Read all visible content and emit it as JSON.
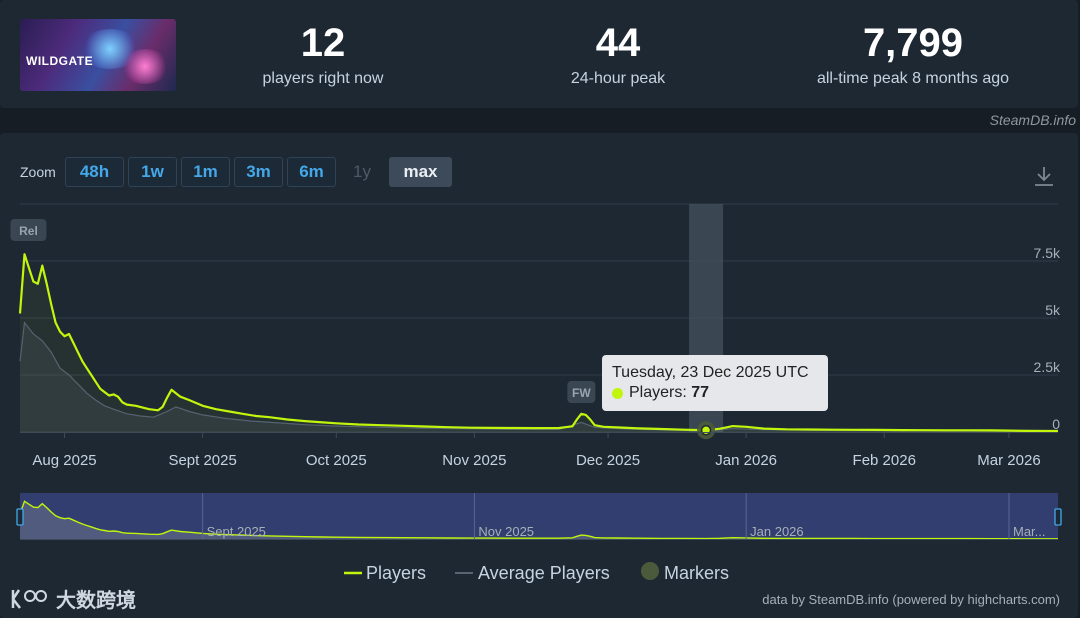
{
  "game": {
    "logo_text": "WILDGATE"
  },
  "stats": [
    {
      "value": "12",
      "label": "players right now"
    },
    {
      "value": "44",
      "label": "24-hour peak"
    },
    {
      "value": "7,799",
      "label": "all-time peak 8 months ago"
    }
  ],
  "watermark": "SteamDB.info",
  "zoom": {
    "label": "Zoom",
    "buttons": [
      {
        "label": "48h",
        "state": "enabled"
      },
      {
        "label": "1w",
        "state": "enabled"
      },
      {
        "label": "1m",
        "state": "enabled"
      },
      {
        "label": "3m",
        "state": "enabled"
      },
      {
        "label": "6m",
        "state": "enabled"
      },
      {
        "label": "1y",
        "state": "disabled"
      },
      {
        "label": "max",
        "state": "active"
      }
    ]
  },
  "chart_data": {
    "type": "line",
    "x_range": [
      "2025-07-22",
      "2026-03-12"
    ],
    "ylim": [
      0,
      10000
    ],
    "y_ticks": [
      {
        "value": 0,
        "label": "0"
      },
      {
        "value": 2500,
        "label": "2.5k"
      },
      {
        "value": 5000,
        "label": "5k"
      },
      {
        "value": 7500,
        "label": "7.5k"
      }
    ],
    "x_ticks": [
      {
        "date": "2025-08-01",
        "label": "Aug 2025"
      },
      {
        "date": "2025-09-01",
        "label": "Sept 2025"
      },
      {
        "date": "2025-10-01",
        "label": "Oct 2025"
      },
      {
        "date": "2025-11-01",
        "label": "Nov 2025"
      },
      {
        "date": "2025-12-01",
        "label": "Dec 2025"
      },
      {
        "date": "2026-01-01",
        "label": "Jan 2026"
      },
      {
        "date": "2026-02-01",
        "label": "Feb 2026"
      },
      {
        "date": "2026-03-01",
        "label": "Mar 2026"
      }
    ],
    "navigator_ticks": [
      {
        "date": "2025-09-01",
        "label": "Sept 2025"
      },
      {
        "date": "2025-11-01",
        "label": "Nov 2025"
      },
      {
        "date": "2026-01-01",
        "label": "Jan 2026"
      },
      {
        "date": "2026-03-01",
        "label": "Mar..."
      }
    ],
    "series": [
      {
        "name": "Players",
        "color": "#c1f60c",
        "points": [
          [
            "2025-07-22",
            5200
          ],
          [
            "2025-07-23",
            7800
          ],
          [
            "2025-07-24",
            7200
          ],
          [
            "2025-07-25",
            6600
          ],
          [
            "2025-07-26",
            6500
          ],
          [
            "2025-07-27",
            7300
          ],
          [
            "2025-07-28",
            6500
          ],
          [
            "2025-07-29",
            5600
          ],
          [
            "2025-07-30",
            4800
          ],
          [
            "2025-07-31",
            4400
          ],
          [
            "2025-08-01",
            4200
          ],
          [
            "2025-08-02",
            4300
          ],
          [
            "2025-08-03",
            3900
          ],
          [
            "2025-08-04",
            3500
          ],
          [
            "2025-08-05",
            3100
          ],
          [
            "2025-08-06",
            2800
          ],
          [
            "2025-08-07",
            2500
          ],
          [
            "2025-08-08",
            2200
          ],
          [
            "2025-08-09",
            1900
          ],
          [
            "2025-08-10",
            1750
          ],
          [
            "2025-08-11",
            1600
          ],
          [
            "2025-08-12",
            1650
          ],
          [
            "2025-08-13",
            1550
          ],
          [
            "2025-08-14",
            1300
          ],
          [
            "2025-08-15",
            1200
          ],
          [
            "2025-08-17",
            1150
          ],
          [
            "2025-08-19",
            1050
          ],
          [
            "2025-08-20",
            1000
          ],
          [
            "2025-08-22",
            950
          ],
          [
            "2025-08-23",
            1100
          ],
          [
            "2025-08-24",
            1500
          ],
          [
            "2025-08-25",
            1850
          ],
          [
            "2025-08-26",
            1700
          ],
          [
            "2025-08-27",
            1550
          ],
          [
            "2025-08-29",
            1400
          ],
          [
            "2025-09-01",
            1150
          ],
          [
            "2025-09-04",
            1000
          ],
          [
            "2025-09-07",
            900
          ],
          [
            "2025-09-10",
            800
          ],
          [
            "2025-09-13",
            700
          ],
          [
            "2025-09-16",
            650
          ],
          [
            "2025-09-20",
            550
          ],
          [
            "2025-09-24",
            480
          ],
          [
            "2025-09-28",
            420
          ],
          [
            "2025-10-01",
            380
          ],
          [
            "2025-10-06",
            330
          ],
          [
            "2025-10-11",
            300
          ],
          [
            "2025-10-16",
            270
          ],
          [
            "2025-10-21",
            240
          ],
          [
            "2025-10-26",
            210
          ],
          [
            "2025-10-31",
            190
          ],
          [
            "2025-11-05",
            180
          ],
          [
            "2025-11-10",
            175
          ],
          [
            "2025-11-15",
            170
          ],
          [
            "2025-11-20",
            175
          ],
          [
            "2025-11-23",
            250
          ],
          [
            "2025-11-24",
            550
          ],
          [
            "2025-11-25",
            800
          ],
          [
            "2025-11-26",
            750
          ],
          [
            "2025-11-27",
            550
          ],
          [
            "2025-11-28",
            300
          ],
          [
            "2025-11-30",
            230
          ],
          [
            "2025-12-03",
            200
          ],
          [
            "2025-12-08",
            160
          ],
          [
            "2025-12-13",
            130
          ],
          [
            "2025-12-18",
            100
          ],
          [
            "2025-12-23",
            77
          ],
          [
            "2025-12-26",
            140
          ],
          [
            "2025-12-29",
            260
          ],
          [
            "2026-01-01",
            230
          ],
          [
            "2026-01-05",
            150
          ],
          [
            "2026-01-10",
            120
          ],
          [
            "2026-01-15",
            110
          ],
          [
            "2026-01-20",
            100
          ],
          [
            "2026-01-25",
            95
          ],
          [
            "2026-01-30",
            90
          ],
          [
            "2026-02-05",
            85
          ],
          [
            "2026-02-10",
            80
          ],
          [
            "2026-02-15",
            75
          ],
          [
            "2026-02-20",
            75
          ],
          [
            "2026-02-25",
            70
          ],
          [
            "2026-03-01",
            60
          ],
          [
            "2026-03-05",
            50
          ],
          [
            "2026-03-10",
            45
          ],
          [
            "2026-03-12",
            44
          ]
        ]
      },
      {
        "name": "Average Players",
        "color": "#566270",
        "points": [
          [
            "2025-07-22",
            3100
          ],
          [
            "2025-07-23",
            4800
          ],
          [
            "2025-07-25",
            4300
          ],
          [
            "2025-07-27",
            4000
          ],
          [
            "2025-07-29",
            3500
          ],
          [
            "2025-07-31",
            2800
          ],
          [
            "2025-08-02",
            2500
          ],
          [
            "2025-08-04",
            2100
          ],
          [
            "2025-08-06",
            1700
          ],
          [
            "2025-08-08",
            1400
          ],
          [
            "2025-08-10",
            1150
          ],
          [
            "2025-08-12",
            1000
          ],
          [
            "2025-08-15",
            800
          ],
          [
            "2025-08-18",
            700
          ],
          [
            "2025-08-21",
            650
          ],
          [
            "2025-08-24",
            900
          ],
          [
            "2025-08-26",
            1100
          ],
          [
            "2025-08-29",
            900
          ],
          [
            "2025-09-01",
            750
          ],
          [
            "2025-09-06",
            600
          ],
          [
            "2025-09-12",
            480
          ],
          [
            "2025-09-18",
            400
          ],
          [
            "2025-09-24",
            320
          ],
          [
            "2025-10-01",
            260
          ],
          [
            "2025-10-10",
            210
          ],
          [
            "2025-10-20",
            170
          ],
          [
            "2025-10-31",
            140
          ],
          [
            "2025-11-10",
            120
          ],
          [
            "2025-11-20",
            115
          ],
          [
            "2025-11-25",
            420
          ],
          [
            "2025-11-28",
            200
          ],
          [
            "2025-12-05",
            130
          ],
          [
            "2025-12-15",
            85
          ],
          [
            "2025-12-23",
            50
          ],
          [
            "2025-12-29",
            150
          ],
          [
            "2026-01-05",
            100
          ],
          [
            "2026-01-20",
            70
          ],
          [
            "2026-02-05",
            55
          ],
          [
            "2026-02-20",
            50
          ],
          [
            "2026-03-05",
            35
          ],
          [
            "2026-03-12",
            30
          ]
        ]
      }
    ],
    "markers": [
      {
        "date": "2025-07-23",
        "label": "Rel"
      },
      {
        "date": "2025-11-25",
        "label": "FW"
      }
    ],
    "tooltip": {
      "date": "2025-12-23",
      "title": "Tuesday, 23 Dec 2025 UTC",
      "series_label": "Players:",
      "value": "77"
    },
    "legend": [
      {
        "label": "Players",
        "symbol": "line",
        "color": "#c1f60c"
      },
      {
        "label": "Average Players",
        "symbol": "line",
        "color": "#566270"
      },
      {
        "label": "Markers",
        "symbol": "dot",
        "color": "#4c5a3c"
      }
    ],
    "credits": "data by SteamDB.info (powered by highcharts.com)"
  },
  "corner_logo": {
    "text": "大数跨境"
  }
}
